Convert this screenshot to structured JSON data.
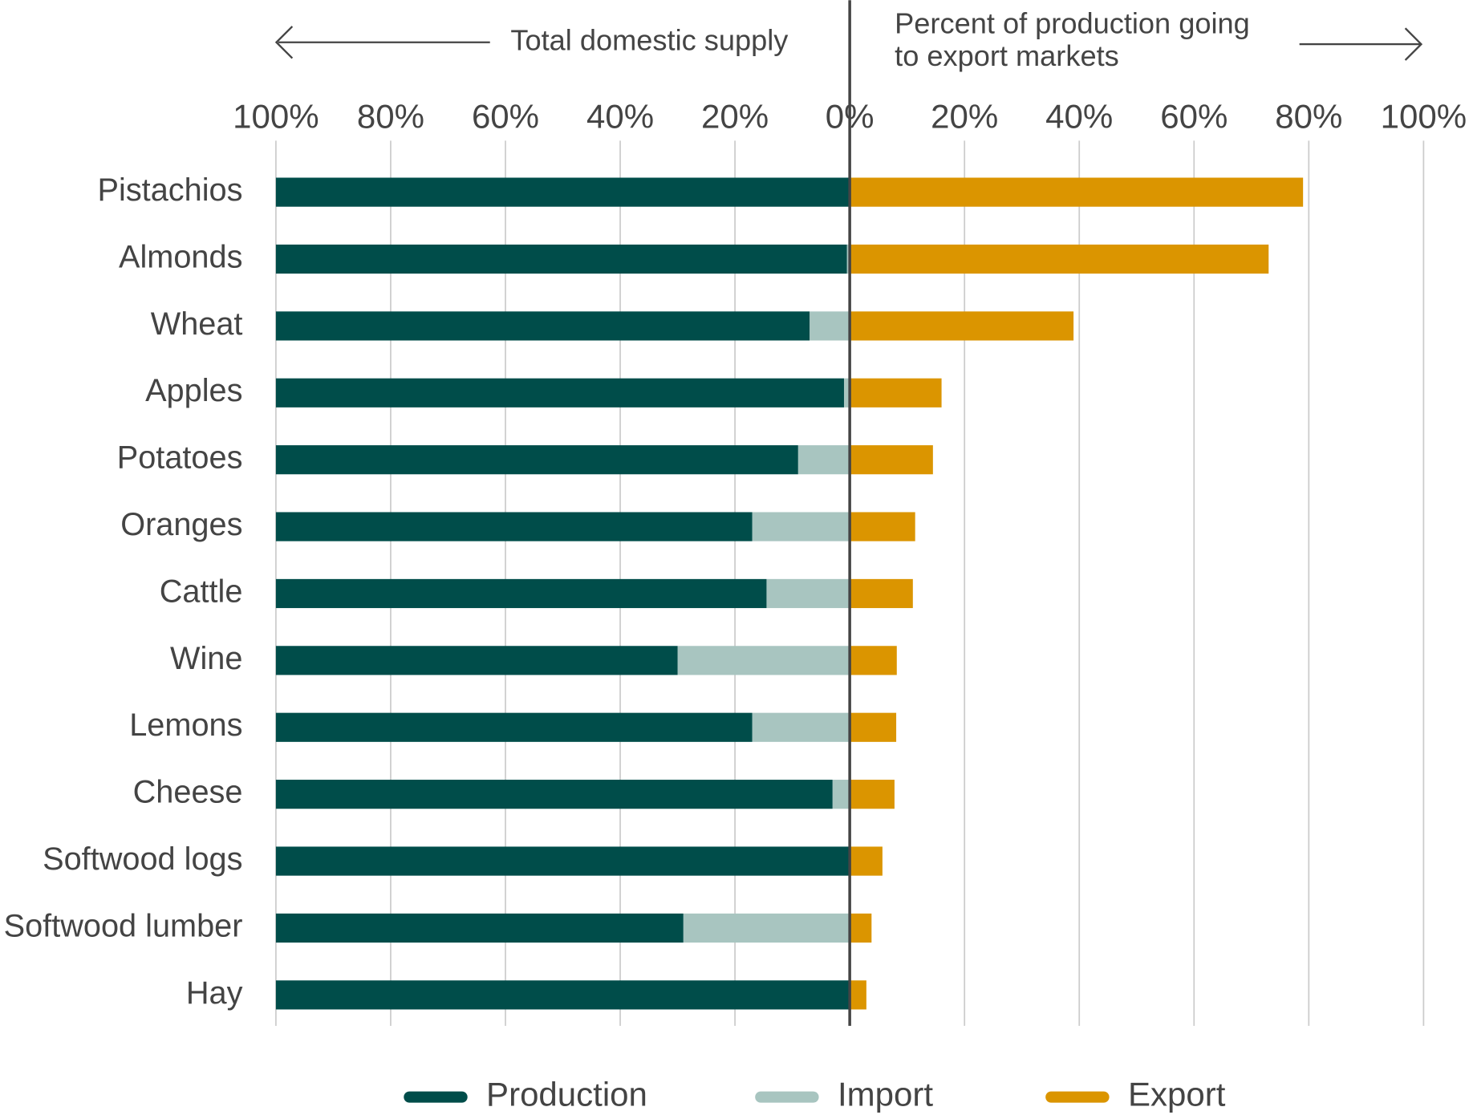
{
  "chart_data": {
    "type": "diverging-bar",
    "left_header": "Total domestic supply",
    "right_header": [
      "Percent of production going",
      "to export markets"
    ],
    "categories": [
      "Pistachios",
      "Almonds",
      "Wheat",
      "Apples",
      "Potatoes",
      "Oranges",
      "Cattle",
      "Wine",
      "Lemons",
      "Cheese",
      "Softwood logs",
      "Softwood lumber",
      "Hay"
    ],
    "series": [
      {
        "name": "Production",
        "color": "#004d4a",
        "side": "left",
        "values": [
          100,
          99.5,
          93,
          99,
          91,
          83,
          85.5,
          70,
          83,
          97,
          100,
          71,
          100
        ]
      },
      {
        "name": "Import",
        "color": "#a8c5c0",
        "side": "left",
        "values": [
          0,
          0.5,
          7,
          1,
          9,
          17,
          14.5,
          30,
          17,
          3,
          0,
          29,
          0
        ]
      },
      {
        "name": "Export",
        "color": "#db9500",
        "side": "right",
        "values": [
          79,
          73,
          39,
          16,
          14.5,
          11.4,
          11,
          8.2,
          8.1,
          7.8,
          5.7,
          3.8,
          2.9
        ]
      }
    ],
    "xlim": [
      0,
      100
    ],
    "xticks": [
      {
        "value": 0,
        "label": "0%"
      },
      {
        "value": 20,
        "label": "20%"
      },
      {
        "value": 40,
        "label": "40%"
      },
      {
        "value": 60,
        "label": "60%"
      },
      {
        "value": 80,
        "label": "80%"
      },
      {
        "value": 100,
        "label": "100%"
      }
    ],
    "grid": true
  }
}
